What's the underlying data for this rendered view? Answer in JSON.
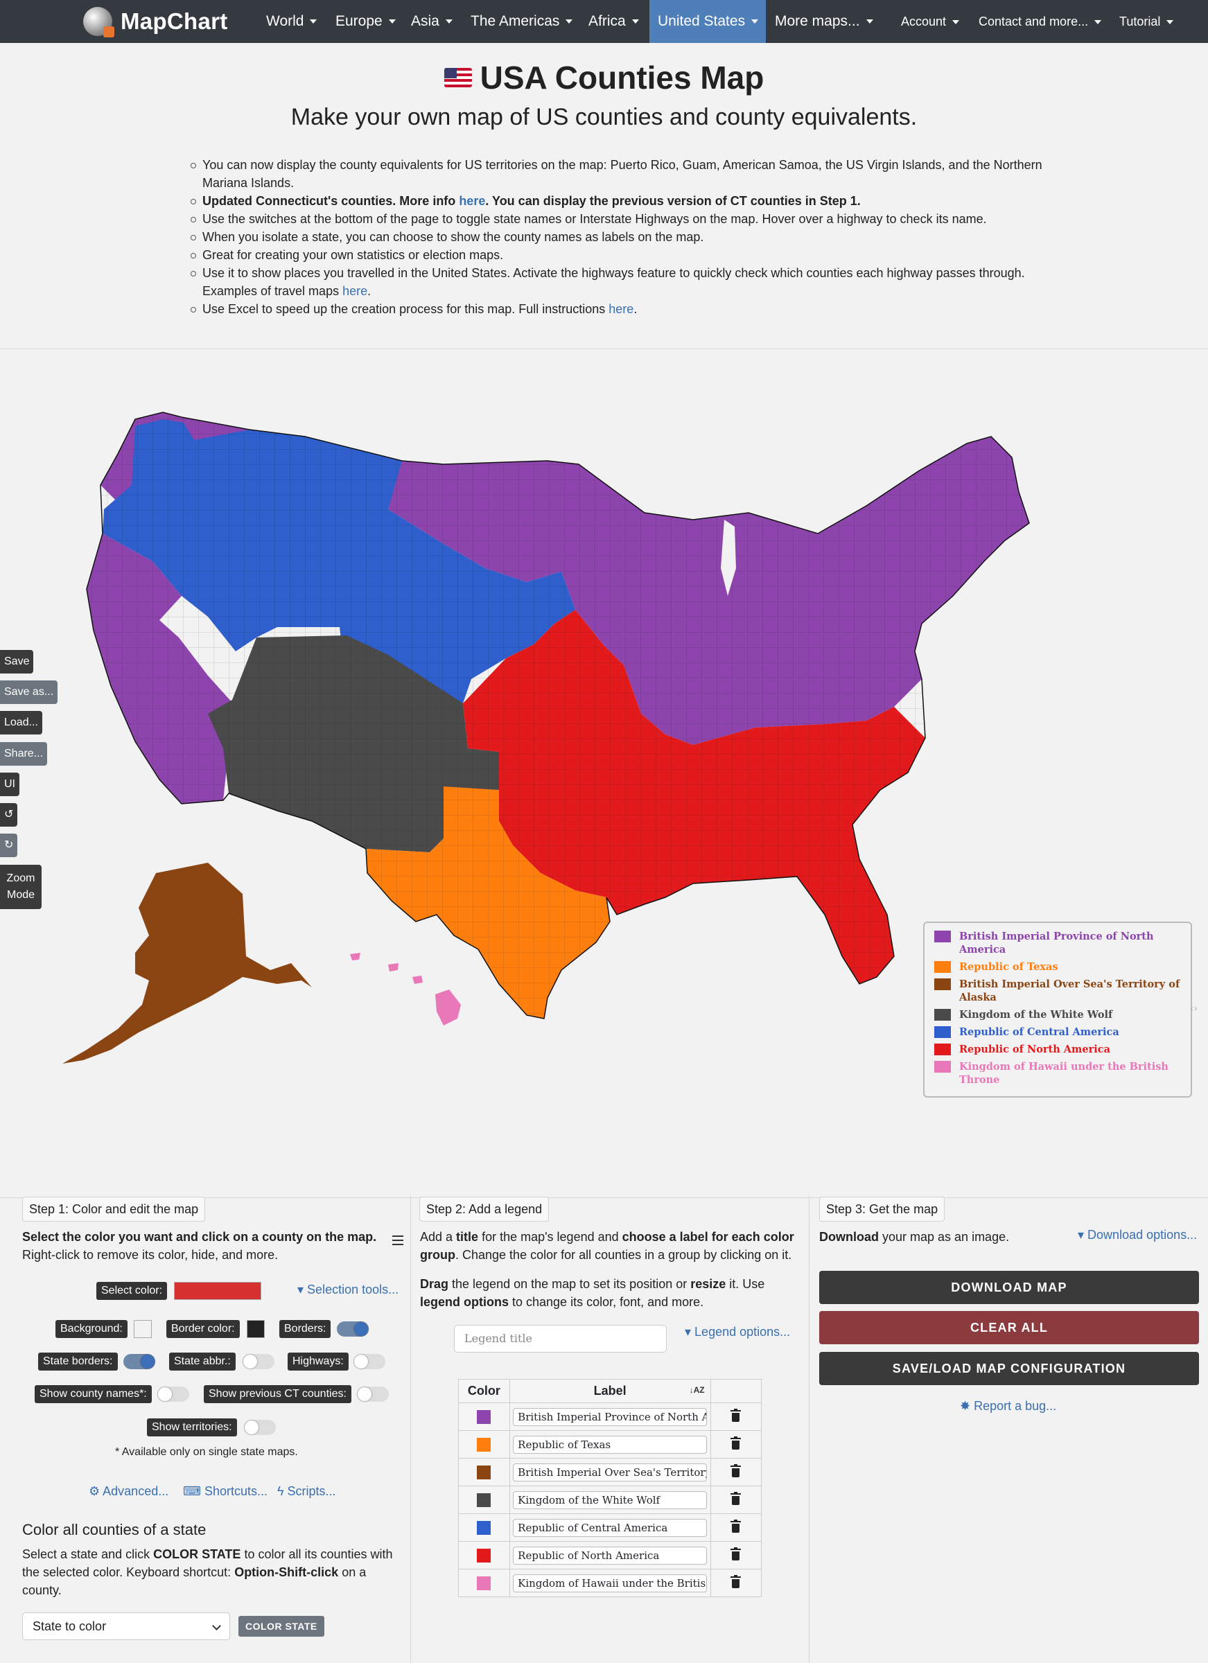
{
  "nav": {
    "brand": "MapChart",
    "items": [
      "World",
      "Europe",
      "Asia",
      "The Americas",
      "Africa",
      "United States",
      "More maps..."
    ],
    "right_items": [
      "Account",
      "Contact and more...",
      "Tutorial"
    ]
  },
  "header": {
    "title": "USA Counties Map",
    "subtitle": "Make your own map of US counties and county equivalents."
  },
  "bullets": {
    "b1": "You can now display the county equivalents for US territories on the map: Puerto Rico, Guam, American Samoa, the US Virgin Islands, and the Northern Mariana Islands.",
    "b2_pre": "Updated Connecticut's counties. More info ",
    "b2_link": "here",
    "b2_post": ". You can display the previous version of CT counties in Step 1.",
    "b3": "Use the switches at the bottom of the page to toggle state names or Interstate Highways on the map. Hover over a highway to check its name.",
    "b4": "When you isolate a state, you can choose to show the county names as labels on the map.",
    "b5": "Great for creating your own statistics or election maps.",
    "b6_pre": "Use it to show places you travelled in the United States. Activate the highways feature to quickly check which counties each highway passes through. Examples of travel maps ",
    "b6_link": "here",
    "b6_post": ".",
    "b7_pre": "Use Excel to speed up the creation process for this map. Full instructions ",
    "b7_link": "here",
    "b7_post": "."
  },
  "side_buttons": [
    "Save",
    "Save as...",
    "Load...",
    "Share...",
    "UI",
    "↺",
    "↻",
    "Zoom Mode"
  ],
  "legend": {
    "items": [
      {
        "label": "British Imperial Province of North America",
        "color": "#8e44ad"
      },
      {
        "label": "Republic of Texas",
        "color": "#ff7f0e"
      },
      {
        "label": "British Imperial Over Sea's Territory of Alaska",
        "color": "#8b4513"
      },
      {
        "label": "Kingdom of the White Wolf",
        "color": "#4a4a4a"
      },
      {
        "label": "Republic of Central America",
        "color": "#2e5fcc"
      },
      {
        "label": "Republic of North America",
        "color": "#e31a1c"
      },
      {
        "label": "Kingdom of Hawaii under the British Throne",
        "color": "#e878b8"
      }
    ]
  },
  "step1": {
    "tab": "Step 1: Color and edit the map",
    "intro_bold": "Select the color you want and click on a county on the map.",
    "intro_rest": "Right-click to remove its color, hide, and more.",
    "select_color_label": "Select color:",
    "selected_color": "#d63031",
    "selection_tools": "Selection tools...",
    "background_label": "Background:",
    "border_color_label": "Border color:",
    "borders_label": "Borders:",
    "state_borders_label": "State borders:",
    "state_abbr_label": "State abbr.:",
    "highways_label": "Highways:",
    "show_county_names_label": "Show county names*:",
    "show_prev_ct_label": "Show previous CT counties:",
    "show_territories_label": "Show territories:",
    "note": "* Available only on single state maps.",
    "advanced": "Advanced...",
    "shortcuts": "Shortcuts...",
    "scripts": "Scripts...",
    "color_state_heading": "Color all counties of a state",
    "color_state_text1": "Select a state and click ",
    "color_state_bold1": "COLOR STATE",
    "color_state_text2": " to color all its counties with the selected color. Keyboard shortcut: ",
    "color_state_bold2": "Option-Shift-click",
    "color_state_text3": " on a county.",
    "state_select": "State to color",
    "color_state_button": "COLOR STATE"
  },
  "step2": {
    "tab": "Step 2: Add a legend",
    "p1_a": "Add a ",
    "p1_b": "title",
    "p1_c": " for the map's legend and ",
    "p1_d": "choose a label for each color group",
    "p1_e": ". Change the color for all counties in a group by clicking on it.",
    "p2_a": "Drag",
    "p2_b": " the legend on the map to set its position or ",
    "p2_c": "resize",
    "p2_d": " it. Use ",
    "p2_e": "legend options",
    "p2_f": " to change its color, font, and more.",
    "legend_title_placeholder": "Legend title",
    "legend_options": "Legend options...",
    "col_color": "Color",
    "col_label": "Label"
  },
  "step3": {
    "tab": "Step 3: Get the map",
    "download_bold": "Download",
    "download_rest": " your map as an image.",
    "download_options": "Download options...",
    "download_map": "DOWNLOAD MAP",
    "clear_all": "CLEAR ALL",
    "save_load": "SAVE/LOAD MAP CONFIGURATION",
    "report_bug": "Report a bug..."
  }
}
